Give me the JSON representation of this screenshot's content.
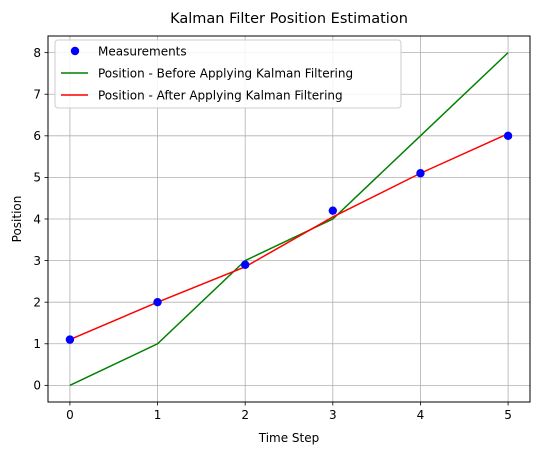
{
  "chart_data": {
    "type": "line",
    "title": "Kalman Filter Position Estimation",
    "xlabel": "Time Step",
    "ylabel": "Position",
    "xlim": [
      -0.25,
      5.25
    ],
    "ylim": [
      -0.4,
      8.4
    ],
    "xticks": [
      0,
      1,
      2,
      3,
      4,
      5
    ],
    "yticks": [
      0,
      1,
      2,
      3,
      4,
      5,
      6,
      7,
      8
    ],
    "grid": true,
    "legend_position": "top-left",
    "series": [
      {
        "name": "Measurements",
        "kind": "scatter",
        "color": "#0000ff",
        "x": [
          0,
          1,
          2,
          3,
          4,
          5
        ],
        "y": [
          1.1,
          2.0,
          2.9,
          4.2,
          5.1,
          6.0
        ]
      },
      {
        "name": "Position - Before Applying Kalman Filtering",
        "kind": "line",
        "color": "#008000",
        "x": [
          0,
          1,
          2,
          3,
          4,
          5
        ],
        "y": [
          0,
          1,
          3,
          4,
          6,
          8
        ]
      },
      {
        "name": "Position - After Applying Kalman Filtering",
        "kind": "line",
        "color": "#ff0000",
        "x": [
          0,
          1,
          2,
          3,
          4,
          5
        ],
        "y": [
          1.1,
          2.0,
          2.85,
          4.05,
          5.1,
          6.05
        ]
      }
    ]
  }
}
